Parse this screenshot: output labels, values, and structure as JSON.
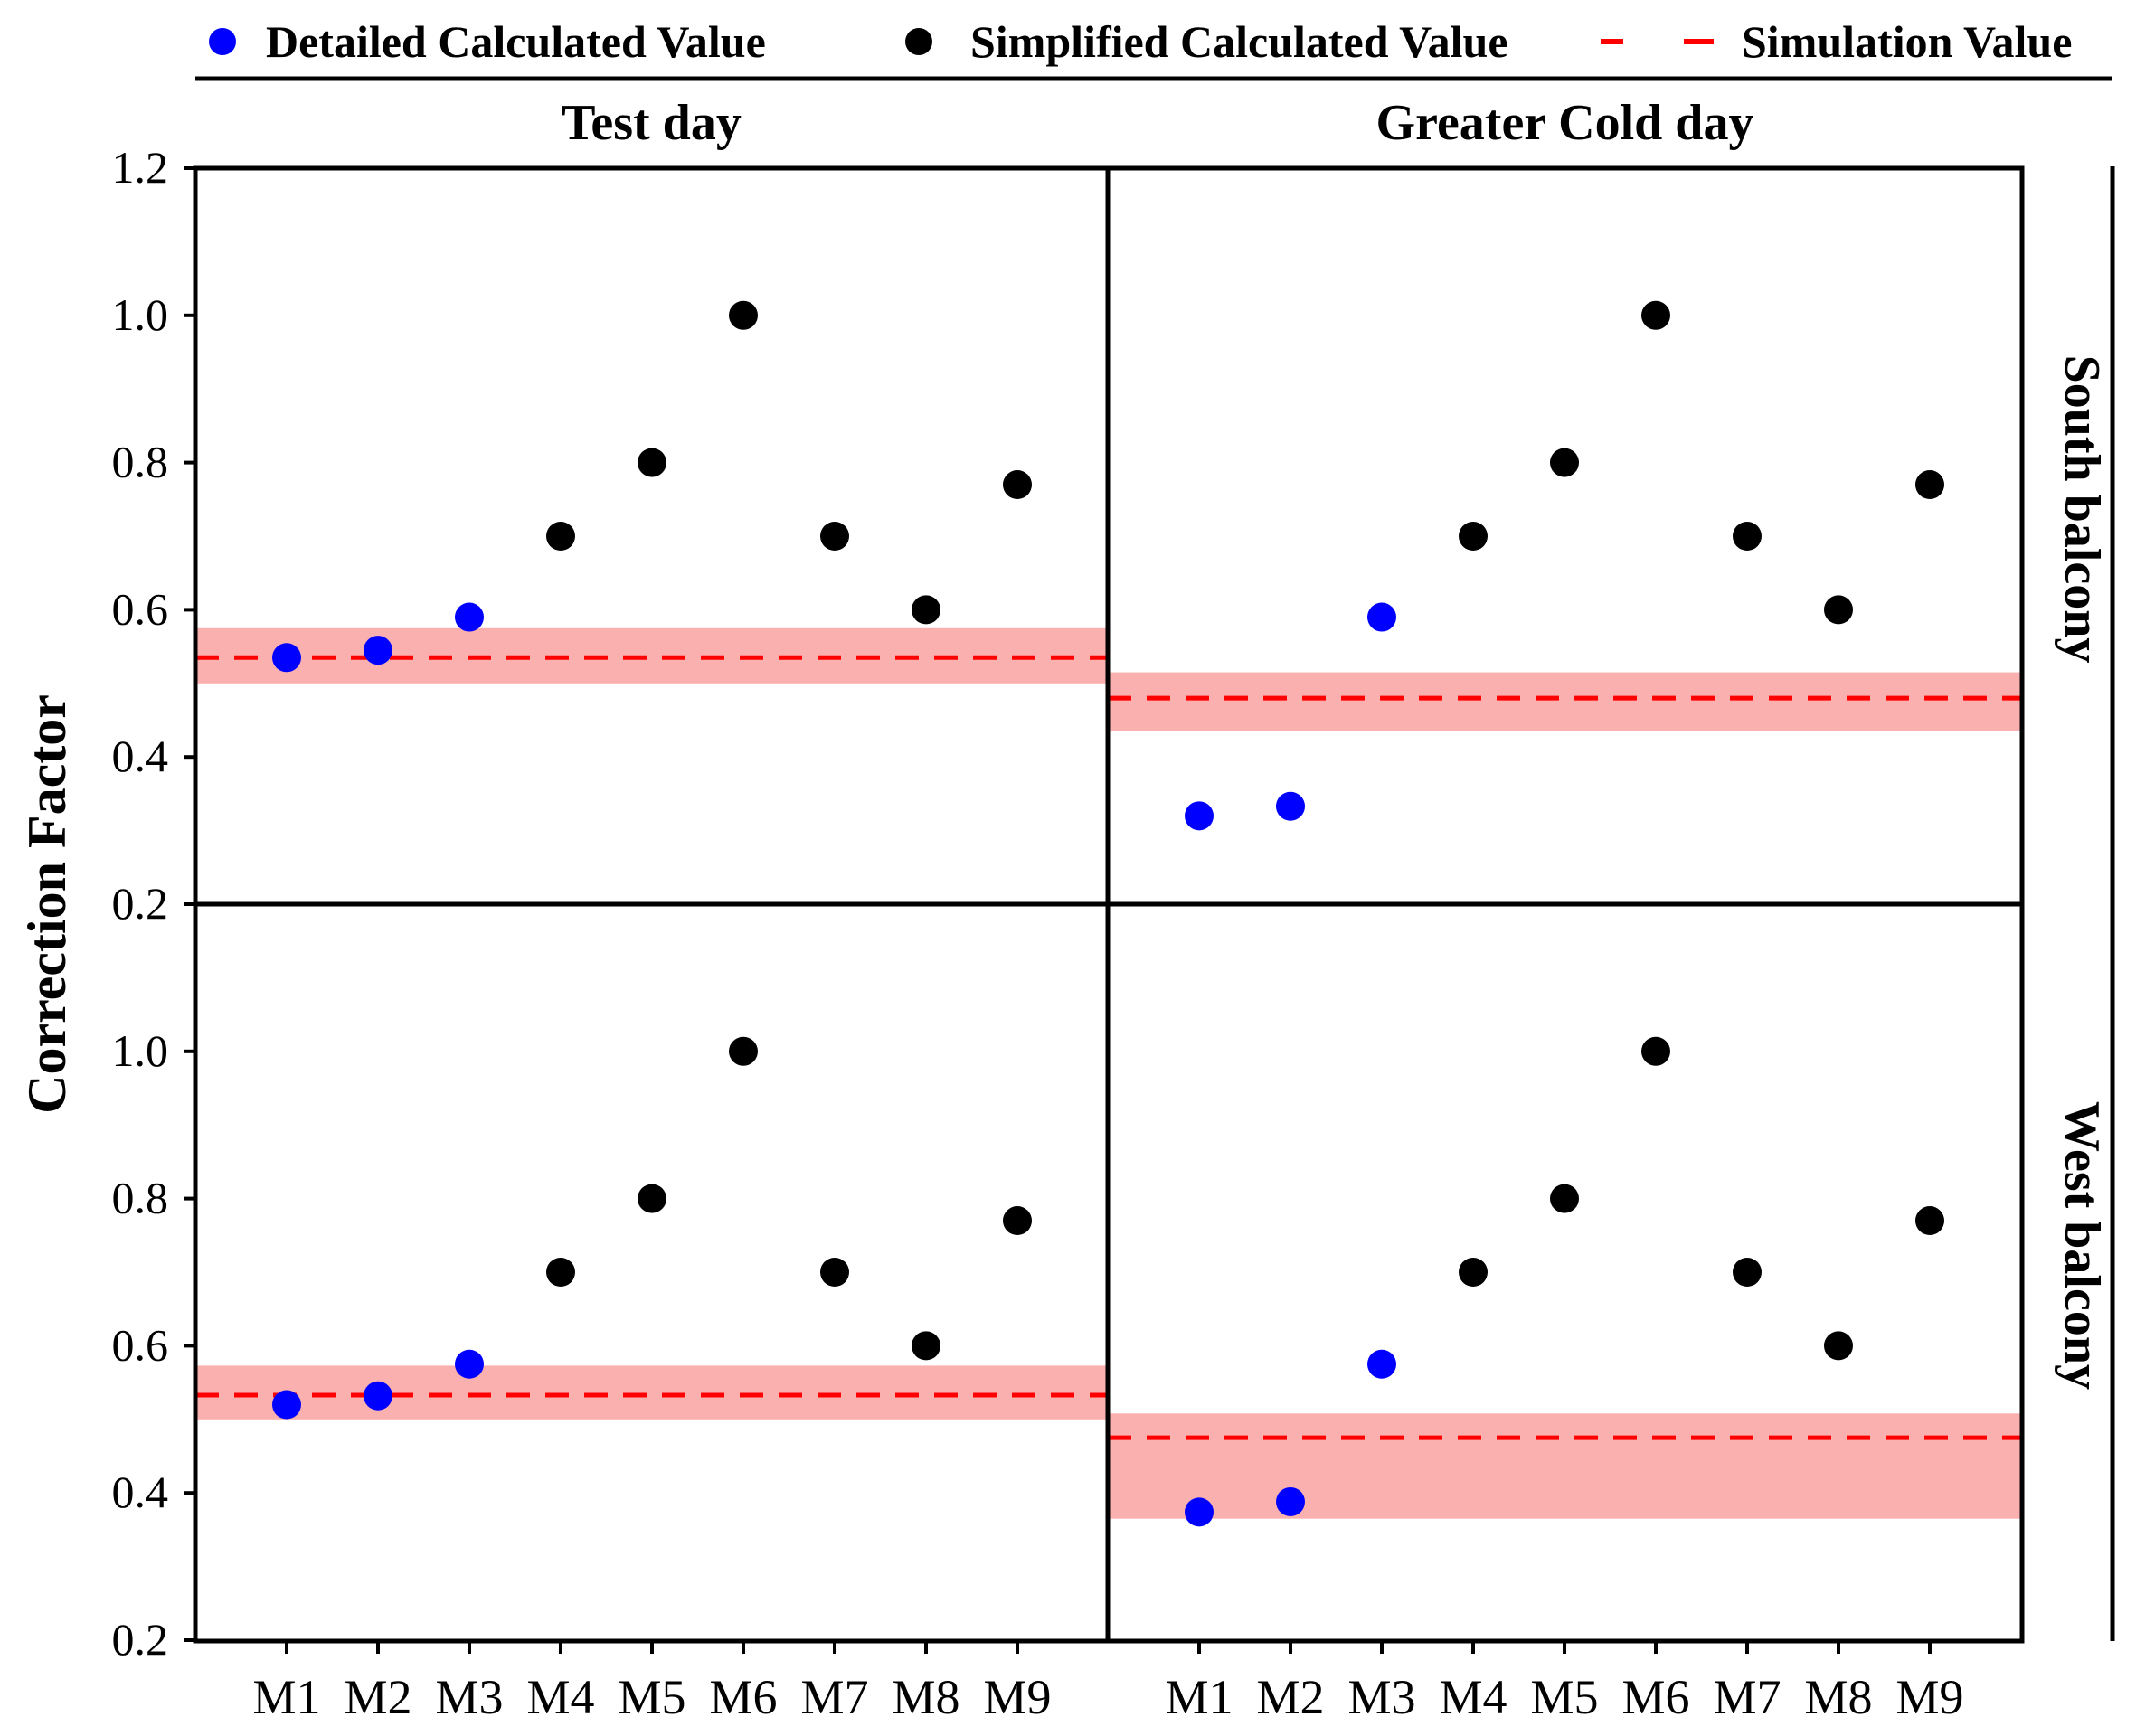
{
  "chart_data": {
    "type": "scatter",
    "ylabel": "Correction Factor",
    "ylim": [
      0.2,
      1.2
    ],
    "yticks": [
      "1.2",
      "1.0",
      "0.8",
      "0.6",
      "0.4",
      "0.2"
    ],
    "categories": [
      "M1",
      "M2",
      "M3",
      "M4",
      "M5",
      "M6",
      "M7",
      "M8",
      "M9"
    ],
    "column_titles": [
      "Test day",
      "Greater Cold day"
    ],
    "row_titles": [
      "South balcony",
      "West balcony"
    ],
    "legend": {
      "position": "top",
      "items": [
        {
          "label": "Detailed Calculated Value",
          "marker": "dot",
          "color": "#0000ff"
        },
        {
          "label": "Simplified Calculated Value",
          "marker": "dot",
          "color": "#000000"
        },
        {
          "label": "Simulation Value",
          "marker": "dashed-line",
          "color": "#ff0000"
        }
      ]
    },
    "colors": {
      "detailed": "#0000ff",
      "simplified": "#000000",
      "simulation": "#ff0000",
      "band": "#fbb0b0"
    },
    "panels": [
      {
        "column": "Test day",
        "row": "South balcony",
        "detailed": {
          "M1": 0.535,
          "M2": 0.545,
          "M3": 0.59
        },
        "simplified": {
          "M4": 0.7,
          "M5": 0.8,
          "M6": 1.0,
          "M7": 0.7,
          "M8": 0.6,
          "M9": 0.77
        },
        "simulation": 0.535,
        "band": [
          0.5,
          0.575
        ]
      },
      {
        "column": "Greater Cold day",
        "row": "South balcony",
        "detailed": {
          "M1": 0.32,
          "M2": 0.333,
          "M3": 0.59
        },
        "simplified": {
          "M4": 0.7,
          "M5": 0.8,
          "M6": 1.0,
          "M7": 0.7,
          "M8": 0.6,
          "M9": 0.77
        },
        "simulation": 0.48,
        "band": [
          0.435,
          0.515
        ]
      },
      {
        "column": "Test day",
        "row": "West balcony",
        "detailed": {
          "M1": 0.52,
          "M2": 0.532,
          "M3": 0.575
        },
        "simplified": {
          "M4": 0.7,
          "M5": 0.8,
          "M6": 1.0,
          "M7": 0.7,
          "M8": 0.6,
          "M9": 0.77
        },
        "simulation": 0.533,
        "band": [
          0.5,
          0.573
        ]
      },
      {
        "column": "Greater Cold day",
        "row": "West balcony",
        "detailed": {
          "M1": 0.374,
          "M2": 0.388,
          "M3": 0.575
        },
        "simplified": {
          "M4": 0.7,
          "M5": 0.8,
          "M6": 1.0,
          "M7": 0.7,
          "M8": 0.6,
          "M9": 0.77
        },
        "simulation": 0.475,
        "band": [
          0.365,
          0.508
        ]
      }
    ]
  }
}
